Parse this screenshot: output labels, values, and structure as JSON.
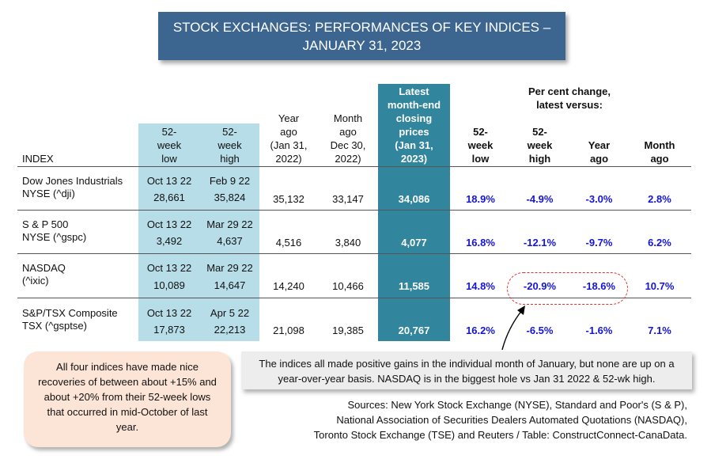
{
  "title": {
    "line1": "STOCK EXCHANGES: PERFORMANCES OF KEY INDICES –",
    "line2": "JANUARY 31, 2023"
  },
  "headers": {
    "index": "INDEX",
    "low52": [
      "52-",
      "week",
      "low"
    ],
    "high52": [
      "52-",
      "week",
      "high"
    ],
    "yearago": [
      "Year",
      "ago",
      "(Jan 31,",
      "2022)"
    ],
    "monthago": [
      "Month",
      "ago",
      "Dec 30,",
      "2022)"
    ],
    "latest": [
      "Latest",
      "month-end",
      "closing",
      "prices",
      "(Jan 31,",
      "2023)"
    ],
    "pct_title": [
      "Per cent change,",
      "latest versus:"
    ],
    "pct_low52": [
      "52-",
      "week",
      "low"
    ],
    "pct_high52": [
      "52-",
      "week",
      "high"
    ],
    "pct_year": [
      "Year",
      "ago"
    ],
    "pct_month": [
      "Month",
      "ago"
    ]
  },
  "rows": [
    {
      "name1": "Dow Jones Industrials",
      "name2": "NYSE (^dji)",
      "low_date": "Oct 13 22",
      "low_val": "28,661",
      "high_date": "Feb 9 22",
      "high_val": "35,824",
      "year_ago": "35,132",
      "month_ago": "33,147",
      "latest": "34,086",
      "p_low": "18.9%",
      "p_high": "-4.9%",
      "p_year": "-3.0%",
      "p_month": "2.8%"
    },
    {
      "name1": "S & P 500",
      "name2": "NYSE (^gspc)",
      "low_date": "Oct 13 22",
      "low_val": "3,492",
      "high_date": "Mar 29 22",
      "high_val": "4,637",
      "year_ago": "4,516",
      "month_ago": "3,840",
      "latest": "4,077",
      "p_low": "16.8%",
      "p_high": "-12.1%",
      "p_year": "-9.7%",
      "p_month": "6.2%"
    },
    {
      "name1": "NASDAQ",
      "name2": "(^ixic)",
      "low_date": "Oct 13 22",
      "low_val": "10,089",
      "high_date": "Mar 29 22",
      "high_val": "14,647",
      "year_ago": "14,240",
      "month_ago": "10,466",
      "latest": "11,585",
      "p_low": "14.8%",
      "p_high": "-20.9%",
      "p_year": "-18.6%",
      "p_month": "10.7%"
    },
    {
      "name1": "S&P/TSX Composite",
      "name2": "TSX (^gsptse)",
      "low_date": "Oct 13 22",
      "low_val": "17,873",
      "high_date": "Apr 5 22",
      "high_val": "22,213",
      "year_ago": "21,098",
      "month_ago": "19,385",
      "latest": "20,767",
      "p_low": "16.2%",
      "p_high": "-6.5%",
      "p_year": "-1.6%",
      "p_month": "7.1%"
    }
  ],
  "note_left": "All four indices have made nice recoveries of between about +15% and about +20% from their 52-week lows that occurred in mid-October of last year.",
  "note_right": "The indices all made positive gains in the individual month of January, but none are up on a year-over-year basis. NASDAQ is in the biggest hole vs Jan 31 2022 & 52-wk high.",
  "sources": [
    "Sources: New York Stock Exchange (NYSE), Standard and Poor's (S & P),",
    "National Association of Securities Dealers Automated Quotations (NASDAQ),",
    "Toronto Stock Exchange (TSE) and Reuters / Table: ConstructConnect-CanaData."
  ]
}
